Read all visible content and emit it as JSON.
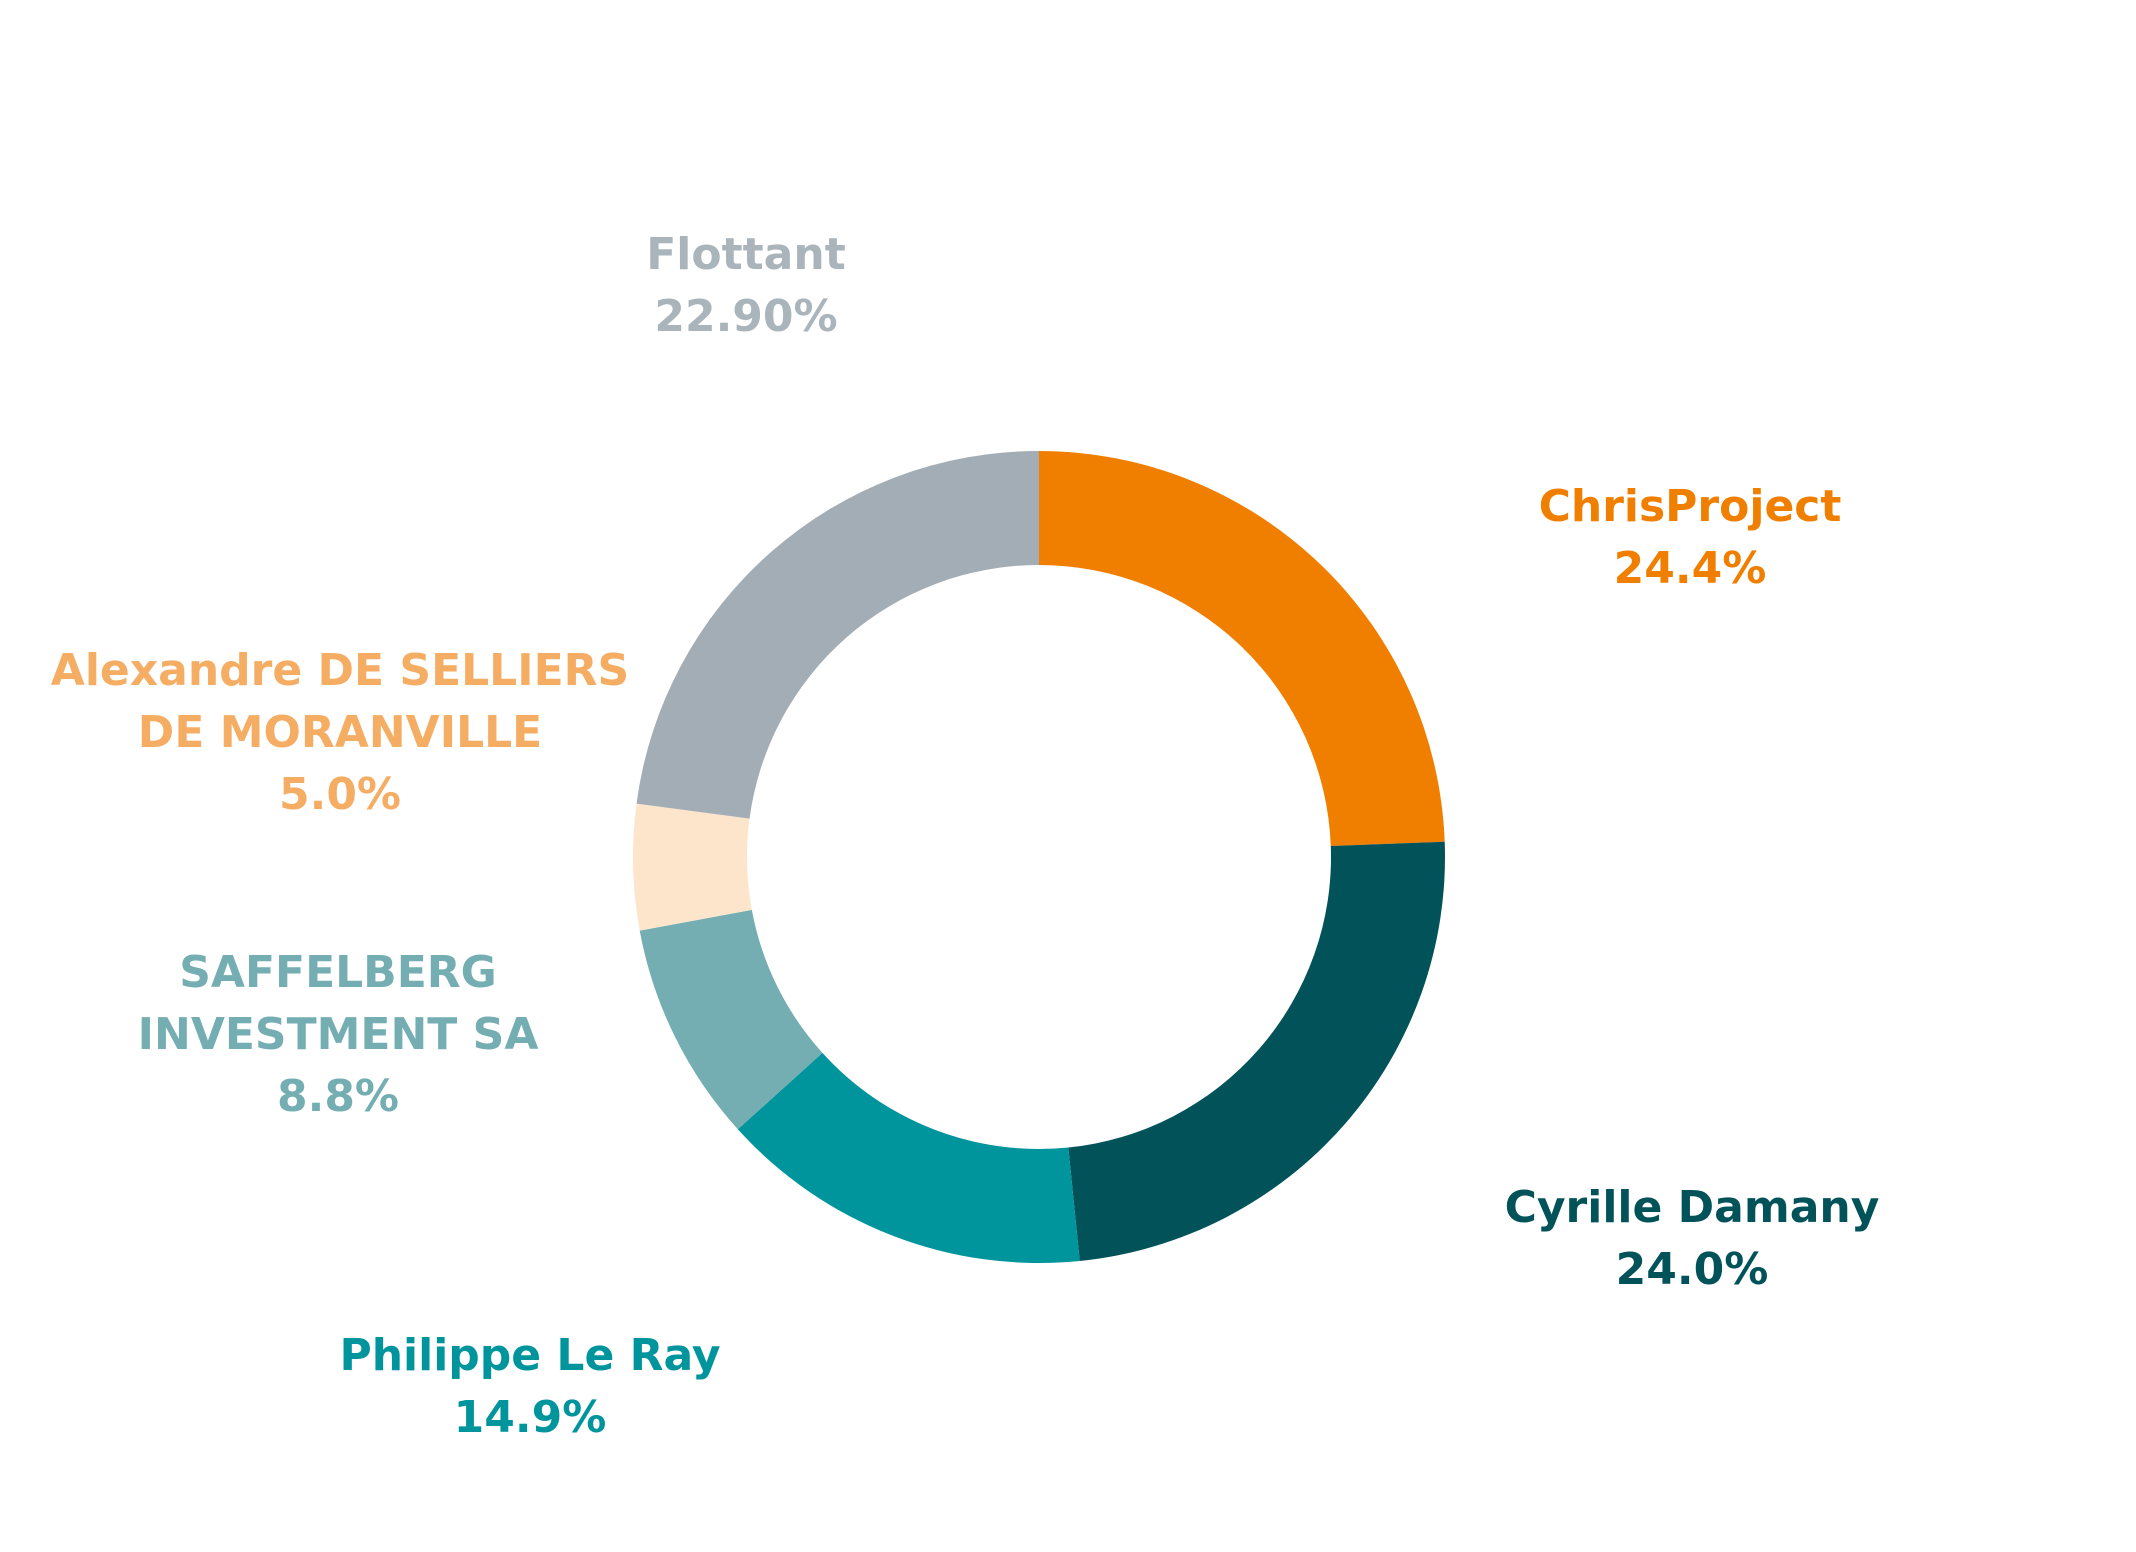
{
  "chart_data": {
    "type": "donut",
    "categories": [
      "ChrisProject",
      "Cyrille Damany",
      "Philippe Le Ray",
      "SAFFELBERG INVESTMENT SA",
      "Alexandre DE SELLIERS DE MORANVILLE",
      "Flottant"
    ],
    "values": [
      24.4,
      24.0,
      14.9,
      8.8,
      5.0,
      22.9
    ],
    "value_labels": [
      "24.4%",
      "24.0%",
      "14.9%",
      "8.8%",
      "5.0%",
      "22.90%"
    ],
    "colors": [
      "#f07f00",
      "#02525a",
      "#00959c",
      "#74aeb2",
      "#fde5cc",
      "#a2adb5"
    ],
    "label_colors": [
      "#f07f00",
      "#02525a",
      "#00959c",
      "#74aeb2",
      "#f5ad64",
      "#a9b4bb"
    ]
  }
}
